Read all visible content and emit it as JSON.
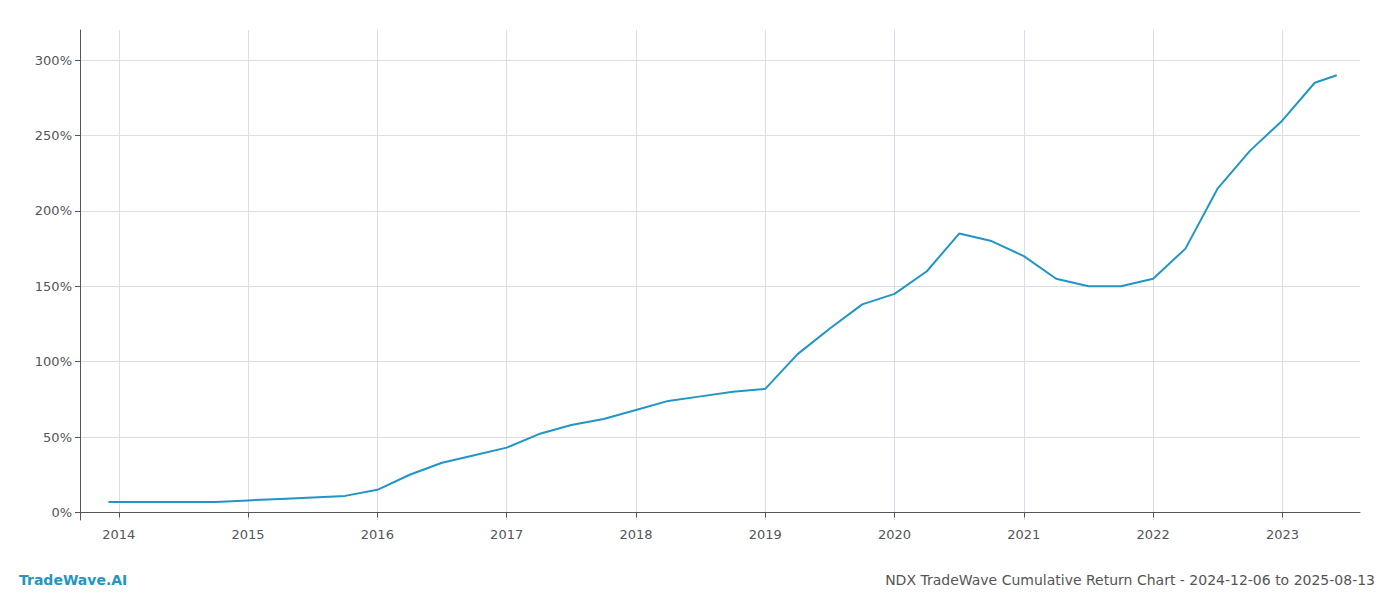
{
  "chart_data": {
    "type": "line",
    "title": "NDX TradeWave Cumulative Return Chart - 2024-12-06 to 2025-08-13",
    "annotations": [
      {
        "text": "TradeWave.AI",
        "color": "#2196c4"
      }
    ],
    "x": [
      2013.92,
      2014.0,
      2014.25,
      2014.5,
      2014.75,
      2015.0,
      2015.25,
      2015.5,
      2015.75,
      2016.0,
      2016.25,
      2016.5,
      2016.75,
      2017.0,
      2017.25,
      2017.5,
      2017.75,
      2018.0,
      2018.25,
      2018.5,
      2018.75,
      2019.0,
      2019.25,
      2019.5,
      2019.75,
      2020.0,
      2020.25,
      2020.5,
      2020.75,
      2021.0,
      2021.25,
      2021.5,
      2021.75,
      2022.0,
      2022.25,
      2022.5,
      2022.75,
      2023.0,
      2023.25,
      2023.42
    ],
    "values": [
      7,
      7,
      7,
      7,
      7,
      8,
      9,
      10,
      11,
      15,
      25,
      33,
      38,
      43,
      52,
      58,
      62,
      68,
      74,
      77,
      80,
      82,
      105,
      122,
      138,
      145,
      160,
      185,
      180,
      170,
      155,
      150,
      150,
      155,
      175,
      215,
      240,
      260,
      285,
      290
    ],
    "color": "#2196c4",
    "xlim": [
      2013.7,
      2023.6
    ],
    "xticks": [
      2014,
      2015,
      2016,
      2017,
      2018,
      2019,
      2020,
      2021,
      2022,
      2023
    ],
    "ylim": [
      -5,
      320
    ],
    "yticks": [
      {
        "value": 0,
        "label": "0%"
      },
      {
        "value": 50,
        "label": "50%"
      },
      {
        "value": 100,
        "label": "100%"
      },
      {
        "value": 150,
        "label": "150%"
      },
      {
        "value": 200,
        "label": "200%"
      },
      {
        "value": 250,
        "label": "250%"
      },
      {
        "value": 300,
        "label": "300%"
      }
    ],
    "grid": true
  }
}
